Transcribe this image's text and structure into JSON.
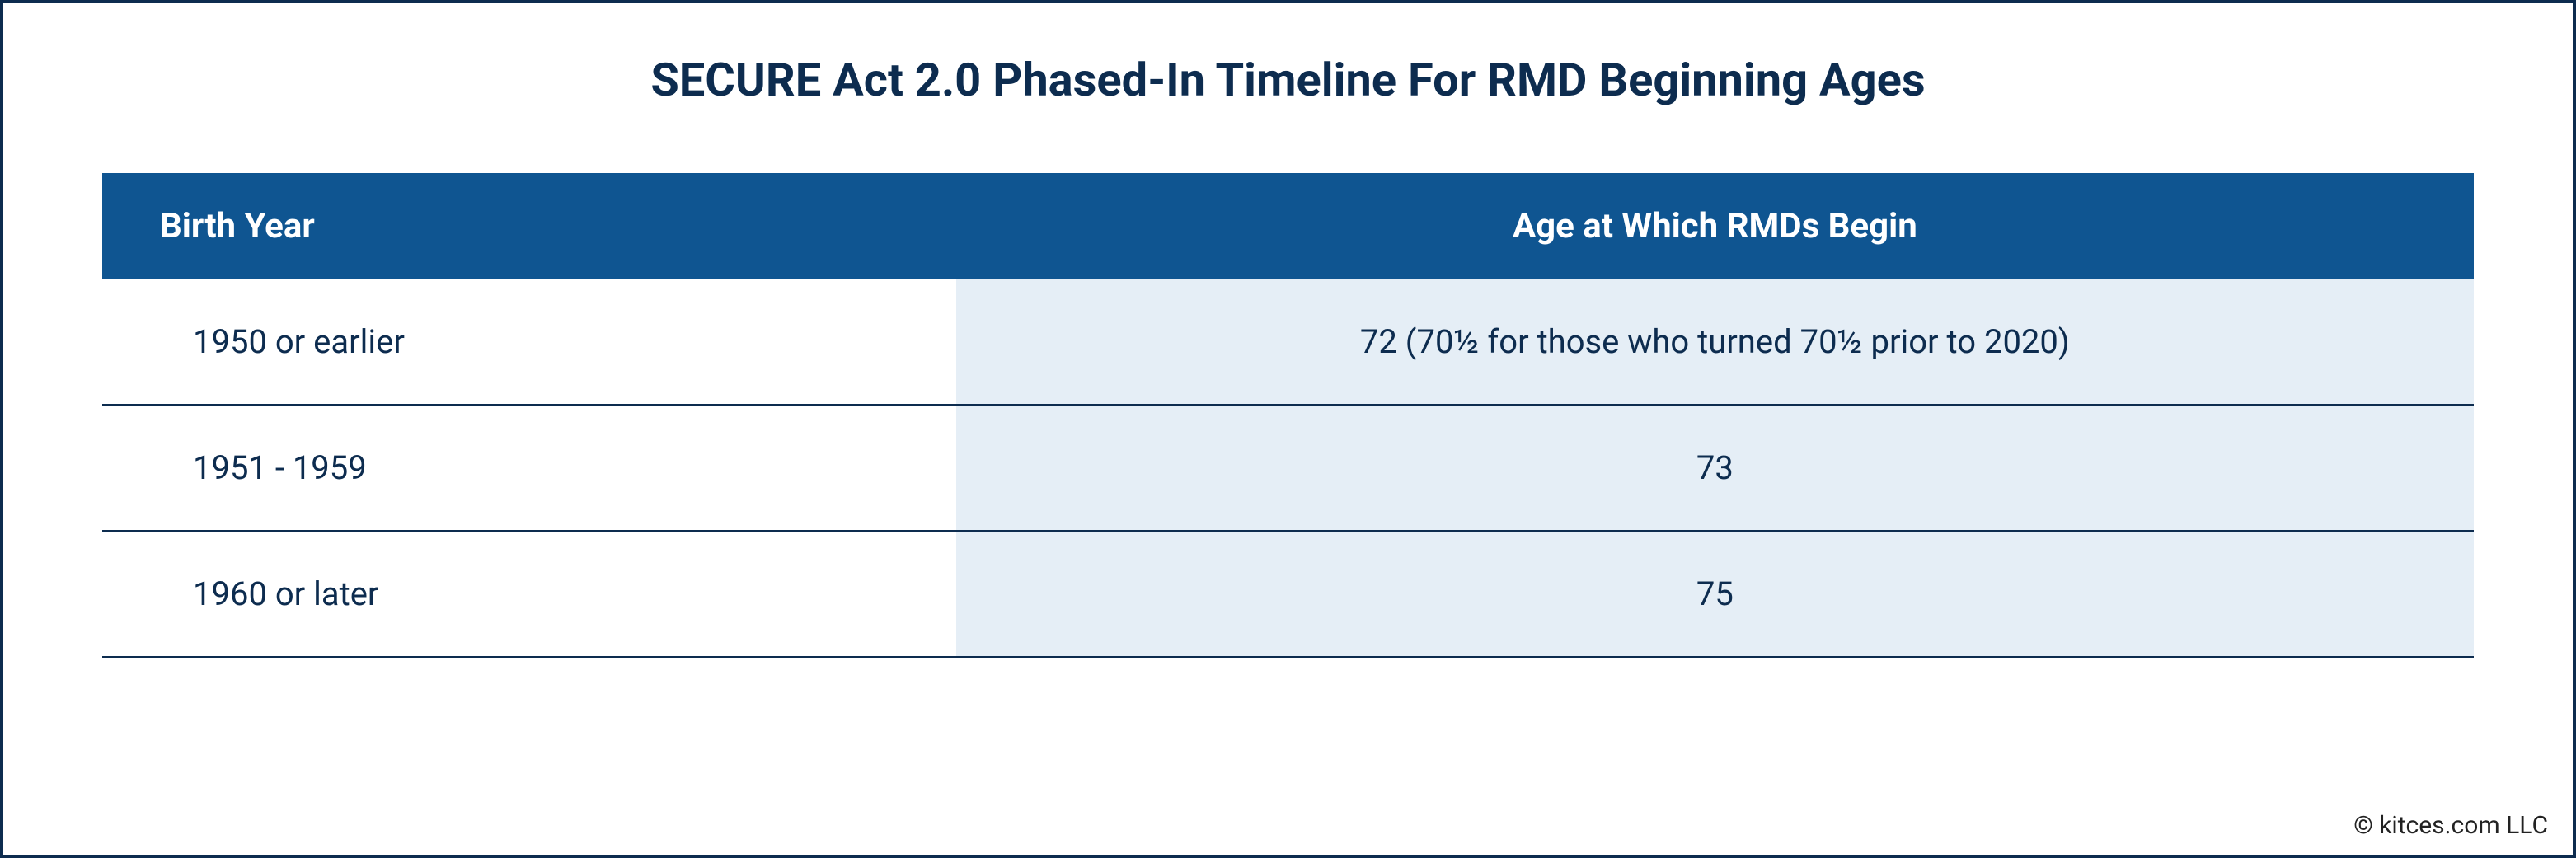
{
  "title": "SECURE Act 2.0 Phased-In Timeline For RMD Beginning Ages",
  "table": {
    "type": "table",
    "header_bg": "#0f5591",
    "header_text_color": "#ffffff",
    "border_color": "#0d2c4f",
    "row_left_bg": "#ffffff",
    "row_right_bg": "#e5eef6",
    "text_color": "#0d2c4f",
    "columns": [
      {
        "label": "Birth Year",
        "align": "left"
      },
      {
        "label": "Age at Which RMDs Begin",
        "align": "center"
      }
    ],
    "rows": [
      {
        "birth_year": "1950 or earlier",
        "rmd_age": "72 (70½ for those who turned 70½ prior to 2020)"
      },
      {
        "birth_year": "1951 - 1959",
        "rmd_age": "73"
      },
      {
        "birth_year": "1960 or later",
        "rmd_age": "75"
      }
    ]
  },
  "attribution": "© kitces.com LLC",
  "frame_border_color": "#0d2c4f",
  "background_color": "#ffffff",
  "title_fontsize": 56,
  "header_fontsize": 42,
  "cell_fontsize": 40,
  "attribution_fontsize": 30
}
